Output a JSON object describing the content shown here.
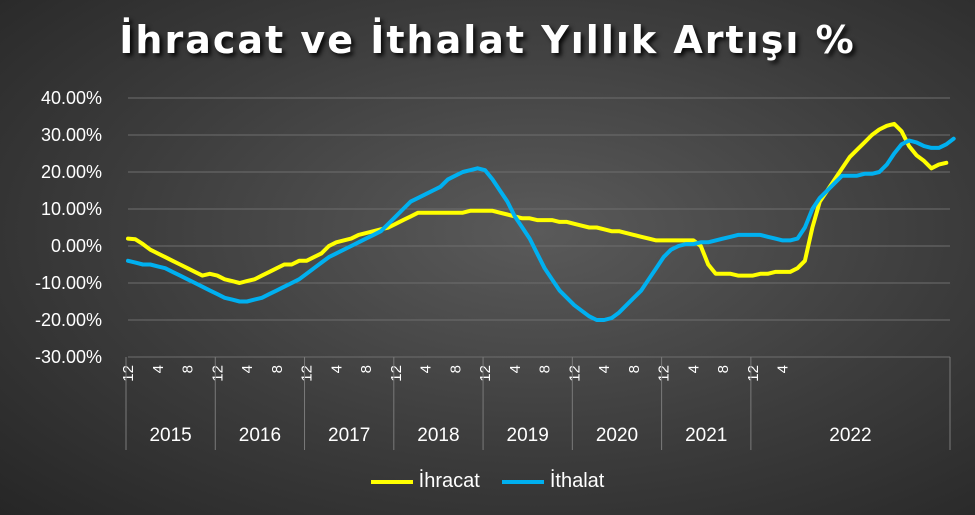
{
  "chart_data": {
    "type": "line",
    "title": "İhracat ve İthalat Yıllık Artışı %",
    "ylim": [
      -30,
      40
    ],
    "yticks": [
      "40.00%",
      "30.00%",
      "20.00%",
      "10.00%",
      "0.00%",
      "-10.00%",
      "-20.00%",
      "-30.00%"
    ],
    "month_ticks": [
      "12",
      "4",
      "8",
      "12",
      "4",
      "8",
      "12",
      "4",
      "8",
      "12",
      "4",
      "8",
      "12",
      "4",
      "8",
      "12",
      "4",
      "8",
      "12",
      "4",
      "8",
      "12",
      "4"
    ],
    "years": [
      "2015",
      "2016",
      "2017",
      "2018",
      "2019",
      "2020",
      "2021",
      "2022"
    ],
    "x_start": "2014-12",
    "x_end": "2022-06",
    "grid": true,
    "legend_position": "bottom",
    "series": [
      {
        "name": "İhracat",
        "color": "#ffff00",
        "values": [
          2,
          1.8,
          0.5,
          -1,
          -2,
          -3,
          -4,
          -5,
          -6,
          -7,
          -8,
          -7.5,
          -8,
          -9,
          -9.5,
          -10,
          -9.5,
          -9,
          -8,
          -7,
          -6,
          -5,
          -5,
          -4,
          -4,
          -3,
          -2,
          0,
          1,
          1.5,
          2,
          3,
          3.5,
          4,
          4.5,
          5,
          6,
          7,
          8,
          9,
          9,
          9,
          9,
          9,
          9,
          9,
          9.5,
          9.5,
          9.5,
          9.5,
          9,
          8.5,
          8,
          7.5,
          7.5,
          7,
          7,
          7,
          6.5,
          6.5,
          6,
          5.5,
          5,
          5,
          4.5,
          4,
          4,
          3.5,
          3,
          2.5,
          2,
          1.5,
          1.5,
          1.5,
          1.5,
          1.5,
          1.5,
          0,
          -5,
          -7.5,
          -7.5,
          -7.5,
          -8,
          -8,
          -8,
          -7.5,
          -7.5,
          -7,
          -7,
          -7,
          -6,
          -4,
          5,
          12,
          15,
          18,
          21,
          24,
          26,
          28,
          30,
          31.5,
          32.5,
          33,
          31,
          27,
          24.5,
          23,
          21,
          22,
          22.5
        ]
      },
      {
        "name": "İthalat",
        "color": "#00b0f0",
        "values": [
          -4,
          -4.5,
          -5,
          -5,
          -5.5,
          -6,
          -7,
          -8,
          -9,
          -10,
          -11,
          -12,
          -13,
          -14,
          -14.5,
          -15,
          -15,
          -14.5,
          -14,
          -13,
          -12,
          -11,
          -10,
          -9,
          -7.5,
          -6,
          -4.5,
          -3,
          -2,
          -1,
          0,
          1,
          2,
          3,
          4,
          6,
          8,
          10,
          12,
          13,
          14,
          15,
          16,
          18,
          19,
          20,
          20.5,
          21,
          20.5,
          18,
          15,
          12,
          8,
          5,
          2,
          -2,
          -6,
          -9,
          -12,
          -14,
          -16,
          -17.5,
          -19,
          -20,
          -20,
          -19.5,
          -18,
          -16,
          -14,
          -12,
          -9,
          -6,
          -3,
          -1,
          0,
          0.5,
          0.5,
          1,
          1,
          1.5,
          2,
          2.5,
          3,
          3,
          3,
          3,
          2.5,
          2,
          1.5,
          1.5,
          2,
          5,
          10,
          13,
          15,
          17,
          19,
          19,
          19,
          19.5,
          19.5,
          20,
          22,
          25,
          27.5,
          28.5,
          28,
          27,
          26.5,
          26.5,
          27.5,
          29
        ]
      }
    ]
  }
}
